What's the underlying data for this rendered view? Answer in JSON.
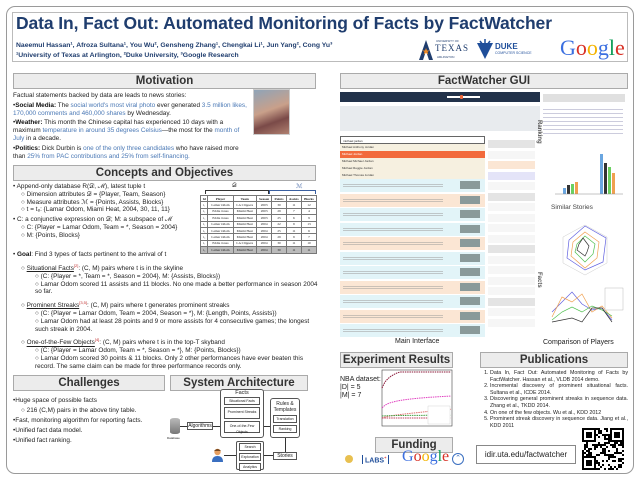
{
  "header": {
    "title": "Data In, Fact Out: Automated Monitoring of Facts by FactWatcher",
    "authors": "Naeemul Hassan¹, Afroza Sultana¹, You Wu², Gensheng Zhang¹, Chengkai Li¹, Jun Yang², Cong Yu³",
    "affiliations": "¹University of Texas at Arlington, ²Duke University, ³Google Research",
    "logos": {
      "uta_top": "UNIVERSITY OF",
      "uta_main": "TEXAS",
      "uta_bottom": "ARLINGTON",
      "duke_main": "DUKE",
      "duke_sub": "COMPUTER SCIENCE",
      "google": "Google"
    }
  },
  "motivation": {
    "heading": "Motivation",
    "intro": "Factual statements backed by data are leads to news stories:",
    "items": [
      {
        "label": "Social Media:",
        "pre": " The ",
        "hl1": "social world's most viral photo",
        "mid": " ever generated ",
        "hl2": "3.5 million likes, 170,000 comments and 460,000 shares",
        "post": " by Wednesday."
      },
      {
        "label": "Weather:",
        "pre": " This month the Chinese capital has experienced 10 days with a maximum ",
        "hl1": "temperature in around 35 degrees Celsius",
        "mid": "—the most for the ",
        "hl2": "month of July",
        "post": " in a decade."
      },
      {
        "label": "Politics:",
        "pre": " Dick Durbin is ",
        "hl1": "one of the only three candidates",
        "mid": " who have raised more than ",
        "hl2": "25% from PAC contributions and 25% from self-financing.",
        "post": ""
      }
    ]
  },
  "concepts": {
    "heading": "Concepts and Objectives",
    "b1": "Append-only database R(𝒟, ℳ), latest tuple t",
    "b1a": "Dimension attributes 𝒟 = {Player, Team, Season}",
    "b1b": "Measure attributes ℳ = {Points, Assists, Blocks}",
    "b1c": "t = t₈: {Lamar Odom, Miami Heat, 2004, 30, 11, 11}",
    "b2": "C: a conjunctive expression on 𝒟; M: a subspace of ℳ",
    "b2a": "C: {Player = Lamar Odom, Team = *, Season = 2004}",
    "b2b": "M: {Points, Blocks}",
    "goal_label": "Goal",
    "goal": ": Find 3 types of facts pertinent to the arrival of t",
    "facts": [
      {
        "name": "Situational Facts",
        "ref": "[2]",
        "desc": ": (C, M) pairs where t is in the skyline",
        "ex1": "(C: {Player = *, Team = *, Season = 2004}, M: {Assists, Blocks})",
        "ex2": "Lamar Odom scored 11 assists and 11 blocks. No one made a better performance in season 2004 so far."
      },
      {
        "name": "Prominent Streaks",
        "ref": "[3,5]",
        "desc": ": (C, M) pairs where t generates prominent streaks",
        "ex1": "(C: {Player = Lamar Odom, Team = 2004, Season = *}, M: {Length, Points, Assists})",
        "ex2": "Lamar Odom had at least 28 points and 9 or more assists for 4 consecutive games; the longest such streak in 2004."
      },
      {
        "name": "One-of-the-Few Objects",
        "ref": "[4]",
        "desc": ": (C, M) pairs where t is in the top-T skyband",
        "ex1": "(C: {Player = Lamar Odom, Team = *, Season = *}, M: {Points, Blocks})",
        "ex2": "Lamar Odom scored 30 points & 11 blocks. Only 2 other performances have ever beaten this record. The same claim can be made for three performance records only."
      }
    ],
    "table": {
      "group_d": "𝒟",
      "group_m": "ℳ",
      "columns": [
        "Id",
        "Player",
        "Team",
        "Season",
        "Points",
        "Assists",
        "Blocks"
      ],
      "rows": [
        [
          "t₁",
          "Lamar Odom",
          "LA Clippers",
          "2003",
          "30",
          "11",
          "12"
        ],
        [
          "t₂",
          "Eddie Jones",
          "Miami Heat",
          "2003",
          "29",
          "7",
          "4"
        ],
        [
          "t₃",
          "Eddie Jones",
          "Miami Heat",
          "2003",
          "25",
          "6",
          "9"
        ],
        [
          "t₄",
          "Lamar Odom",
          "Miami Heat",
          "2004",
          "22",
          "9",
          "13"
        ],
        [
          "t₅",
          "Lamar Odom",
          "Miami Heat",
          "2004",
          "25",
          "11",
          "6"
        ],
        [
          "t₆",
          "Lamar Odom",
          "Miami Heat",
          "2004",
          "29",
          "9",
          "7"
        ],
        [
          "t₇",
          "Eddie Jones",
          "LA Clippers",
          "2004",
          "30",
          "11",
          "10"
        ],
        [
          "t₈",
          "Lamar Odom",
          "Miami Heat",
          "2004",
          "30",
          "11",
          "11"
        ]
      ]
    }
  },
  "challenges": {
    "heading": "Challenges",
    "items": [
      "Huge space of possible facts",
      "216 (C,M) pairs in the above tiny table.",
      "Fast, monitoring algorithm for reporting facts.",
      "Unified fact data model.",
      "Unified fact ranking."
    ]
  },
  "architecture": {
    "heading": "System Architecture",
    "database": "Database",
    "algorithms": "Algorithms",
    "facts": "Facts",
    "fact_types": [
      "Situational Facts",
      "Prominent Streaks",
      "One-of-the-Few Objects"
    ],
    "rules": "Rules & Templates",
    "rule_items": [
      "Translation",
      "Ranking"
    ],
    "stories": "Stories",
    "uses": [
      "Search",
      "Exploration",
      "Analytics"
    ]
  },
  "gui": {
    "heading": "FactWatcher GUI",
    "search_value": "michael jordan",
    "suggestions": [
      "Michael Anthony Jordan",
      "Michael Jordan",
      "Michael Michael Jordan",
      "Michael Reggie Jordan",
      "Michael Thomas Jordan"
    ],
    "ranking_label": "Ranking",
    "facts_label": "Facts",
    "similar_stories": "Similar Stories",
    "main_caption": "Main Interface",
    "comparison_caption": "Comparison of Players"
  },
  "experiments": {
    "heading": "Experiment Results",
    "dataset": "NBA dataset:",
    "d": "|D| = 5",
    "m": "|M| = 7",
    "series_colors": [
      "#8b1a3a",
      "#e040c0",
      "#e07070",
      "#40a040",
      "#c04060"
    ]
  },
  "funding": {
    "heading": "Funding",
    "labs": "LABS",
    "google": "Google"
  },
  "publications": {
    "heading": "Publications",
    "items": [
      "Data In, Fact Out: Automated Monitoring of Facts by FactWatcher. Hassan et al., VLDB 2014 demo.",
      "Incremental discovery of prominent situational facts. Sultana et al., ICDE 2014.",
      "Discovering general prominent streaks in sequence data. Zhang et al., TKDD 2014.",
      "On one of the few objects. Wu et al., KDD 2012",
      "Prominent streak discovery in sequence data. Jiang et al., KDD 2011"
    ],
    "url": "idir.uta.edu/factwatcher"
  },
  "colors": {
    "title": "#1f3d6e",
    "highlight": "#4a78b5",
    "gui_nav": "#22324a",
    "gui_select": "#f26a3c"
  }
}
